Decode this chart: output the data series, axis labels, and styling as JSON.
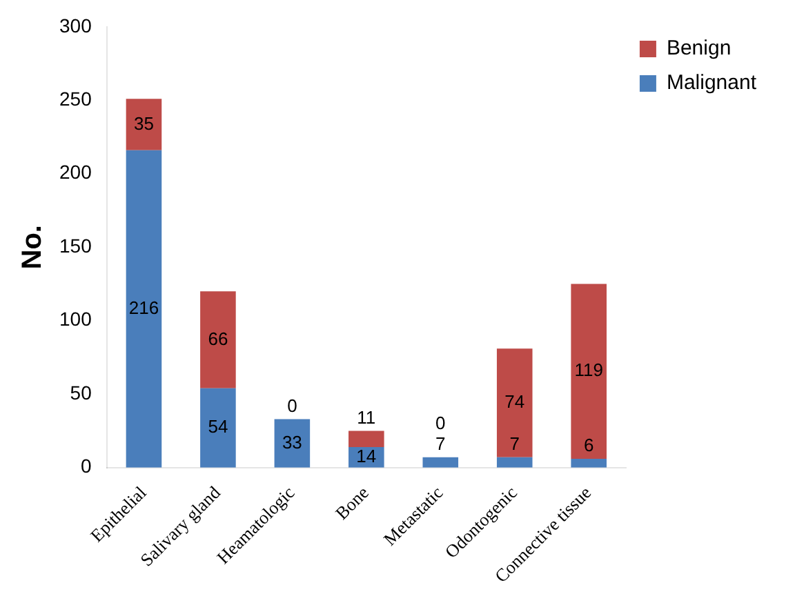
{
  "chart_data": {
    "type": "bar",
    "stacked": true,
    "ylabel": "No.",
    "categories": [
      "Epithelial",
      "Salivary gland",
      "Heamatologic",
      "Bone",
      "Metastatic",
      "Odontogenic",
      "Connective tissue"
    ],
    "series": [
      {
        "name": "Malignant",
        "color": "#4a7ebb",
        "values": [
          216,
          54,
          33,
          14,
          7,
          7,
          6
        ]
      },
      {
        "name": "Benign",
        "color": "#be4b48",
        "values": [
          35,
          66,
          0,
          11,
          0,
          74,
          119
        ]
      }
    ],
    "ylim": [
      0,
      300
    ],
    "yticks": [
      0,
      50,
      100,
      150,
      200,
      250,
      300
    ],
    "grid": false,
    "legend": "top right",
    "data_labels": true
  }
}
